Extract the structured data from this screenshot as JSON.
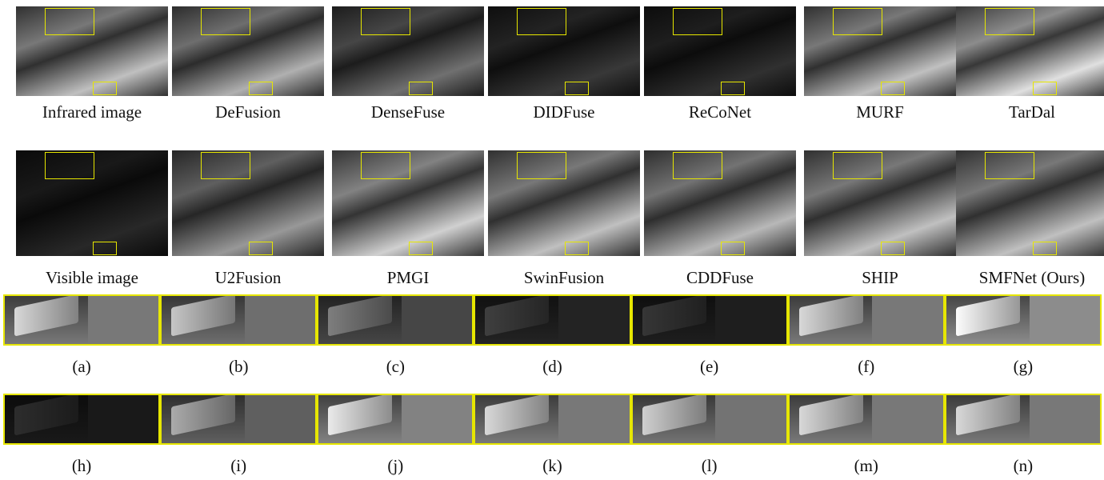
{
  "methods": [
    "Infrared image",
    "DeFusion",
    "DenseFuse",
    "DIDFuse",
    "ReCoNet",
    "MURF",
    "TarDal",
    "Visible image",
    "U2Fusion",
    "PMGI",
    "SwinFusion",
    "CDDFuse",
    "SHIP",
    "SMFNet (Ours)"
  ],
  "crops": [
    "(a)",
    "(b)",
    "(c)",
    "(d)",
    "(e)",
    "(f)",
    "(g)",
    "(h)",
    "(i)",
    "(j)",
    "(k)",
    "(l)",
    "(m)",
    "(n)"
  ]
}
